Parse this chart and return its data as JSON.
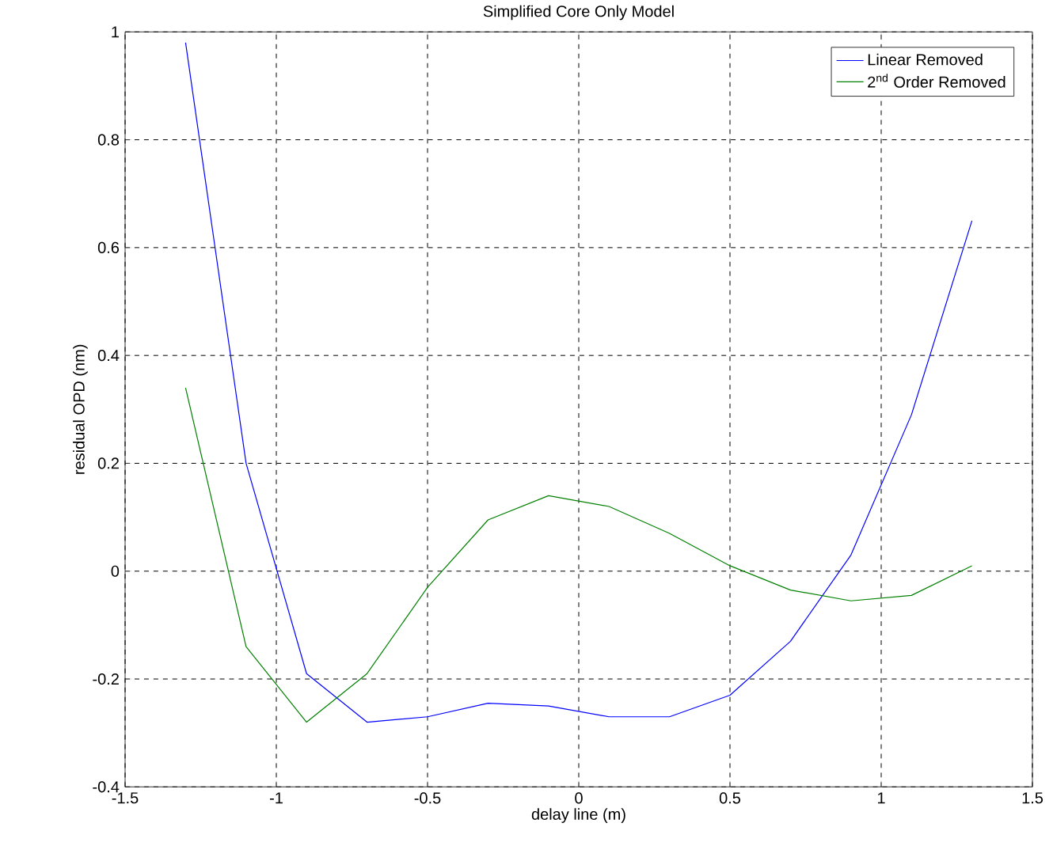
{
  "chart_data": {
    "type": "line",
    "title": "Simplified Core Only Model",
    "xlabel": "delay line (m)",
    "ylabel": "residual OPD (nm)",
    "x": [
      -1.3,
      -1.1,
      -0.9,
      -0.7,
      -0.5,
      -0.3,
      -0.1,
      0.1,
      0.3,
      0.5,
      0.7,
      0.9,
      1.1,
      1.3
    ],
    "series": [
      {
        "name": "Linear Removed",
        "color": "#0000ff",
        "values": [
          0.98,
          0.2,
          -0.19,
          -0.28,
          -0.27,
          -0.245,
          -0.25,
          -0.27,
          -0.27,
          -0.23,
          -0.13,
          0.03,
          0.29,
          0.65
        ]
      },
      {
        "name": "2$^{nd}$ Order Removed",
        "color": "#008000",
        "values": [
          0.34,
          -0.14,
          -0.28,
          -0.19,
          -0.03,
          0.095,
          0.14,
          0.12,
          0.07,
          0.01,
          -0.035,
          -0.055,
          -0.045,
          0.01
        ]
      }
    ],
    "xlim": [
      -1.5,
      1.5
    ],
    "ylim": [
      -0.4,
      1
    ],
    "xticks": [
      -1.5,
      -1,
      -0.5,
      0,
      0.5,
      1,
      1.5
    ],
    "yticks": [
      -0.4,
      -0.2,
      0,
      0.2,
      0.4,
      0.6,
      0.8,
      1
    ],
    "grid": true,
    "legend": "top right",
    "marker": "none",
    "line_style": "solid"
  }
}
